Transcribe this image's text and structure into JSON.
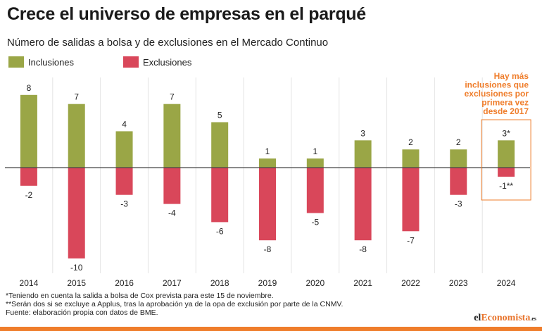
{
  "title": "Crece el universo de empresas en el parqué",
  "subtitle": "Número de salidas a bolsa y de exclusiones en el Mercado Continuo",
  "colors": {
    "inclusiones": "#9aa646",
    "exclusiones": "#d9475a",
    "annotation": "#ef7d2b",
    "grid": "#e4e4e4",
    "axis": "#444444",
    "bottom_bar": "#ef7d2b"
  },
  "chart_data": {
    "type": "bar",
    "categories": [
      "2014",
      "2015",
      "2016",
      "2017",
      "2018",
      "2019",
      "2020",
      "2021",
      "2022",
      "2023",
      "2024"
    ],
    "series": [
      {
        "name": "Inclusiones",
        "values": [
          8,
          7,
          4,
          7,
          5,
          1,
          1,
          3,
          2,
          2,
          3
        ],
        "labels": [
          "8",
          "7",
          "4",
          "7",
          "5",
          "1",
          "1",
          "3",
          "2",
          "2",
          "3*"
        ]
      },
      {
        "name": "Exclusiones",
        "values": [
          -2,
          -10,
          -3,
          -4,
          -6,
          -8,
          -5,
          -8,
          -7,
          -3,
          -1
        ],
        "labels": [
          "-2",
          "-10",
          "-3",
          "-4",
          "-6",
          "-8",
          "-5",
          "-8",
          "-7",
          "-3",
          "-1**"
        ]
      }
    ],
    "ylim": [
      -10,
      8
    ],
    "legend_position": "top-left",
    "annotation": "Hay más inclusiones que exclusiones por primera vez desde 2017"
  },
  "footnotes": [
    "*Teniendo en cuenta la salida a bolsa de Cox prevista para este 15 de noviembre.",
    "**Serán dos si se excluye a Applus, tras la aprobación ya de la opa de exclusión por parte de la CNMV.",
    "Fuente: elaboración propia con datos de BME."
  ],
  "logo": {
    "prefix": "el",
    "accent": "Economista",
    "suffix": ".es"
  }
}
